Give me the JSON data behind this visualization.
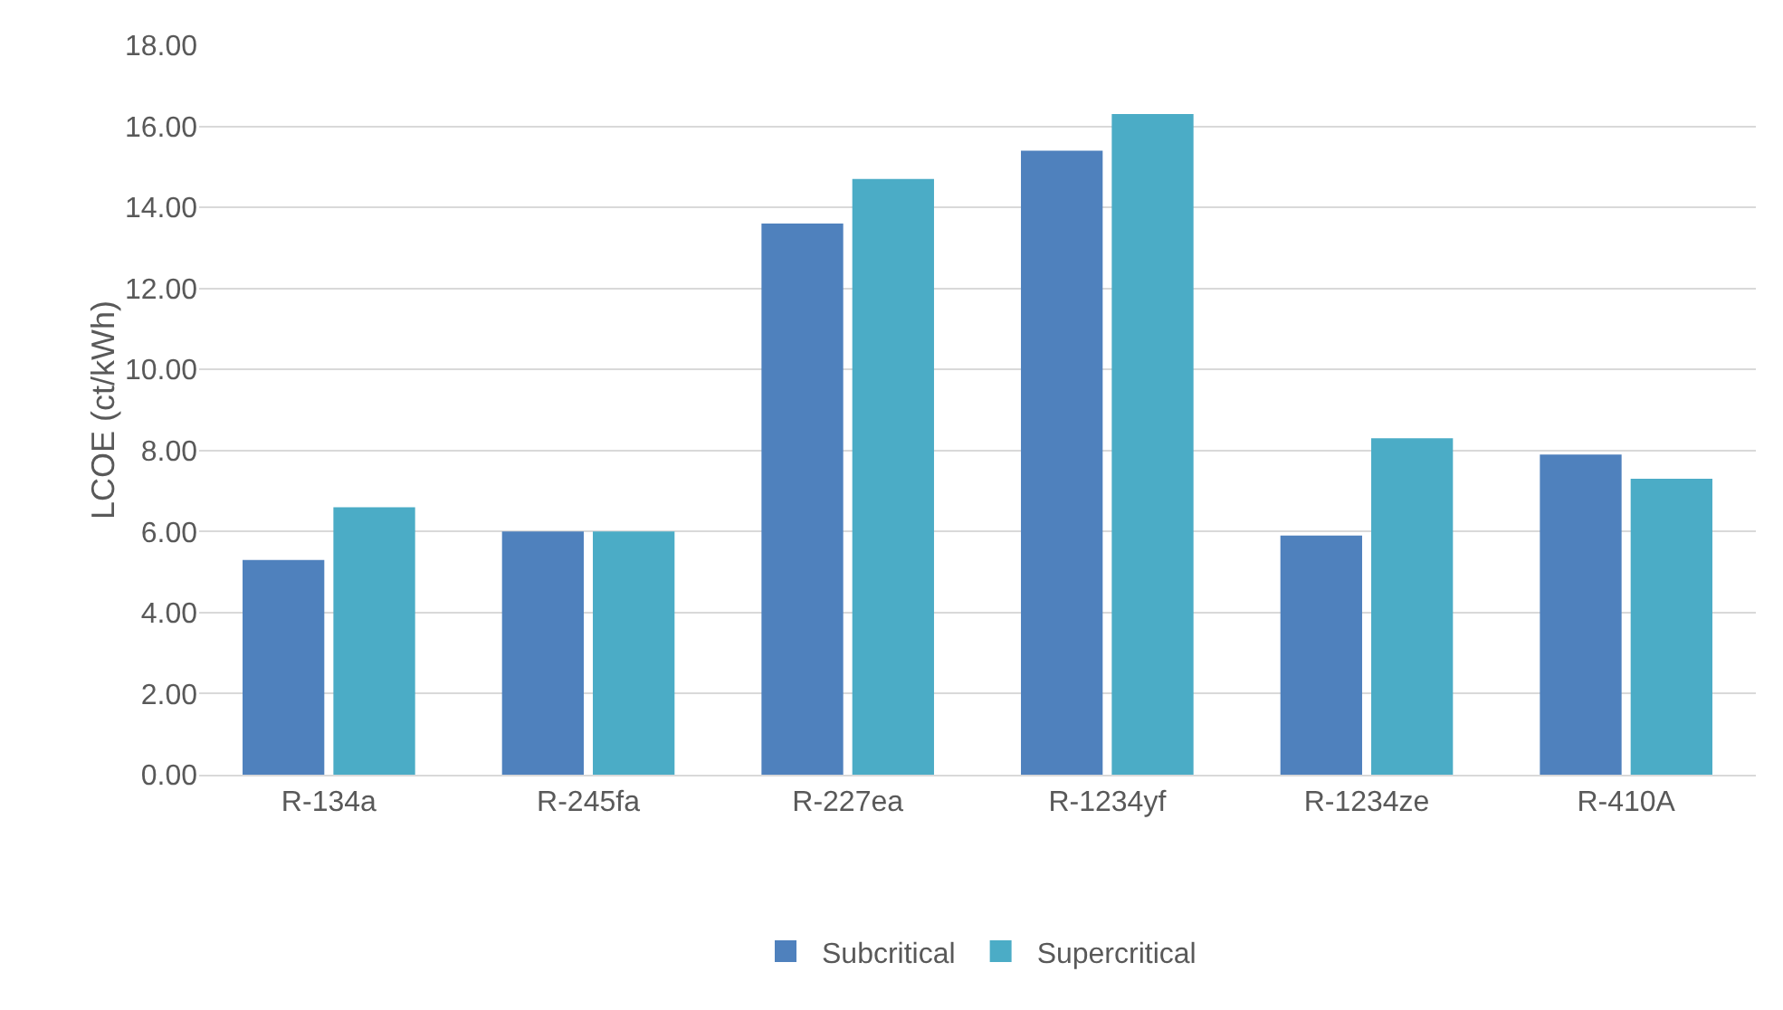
{
  "chart_data": {
    "type": "bar",
    "ylabel": "LCOE (ct/kWh)",
    "categories": [
      "R-134a",
      "R-245fa",
      "R-227ea",
      "R-1234yf",
      "R-1234ze",
      "R-410A"
    ],
    "series": [
      {
        "name": "Subcritical",
        "color": "#4f81bd",
        "values": [
          5.3,
          6.0,
          13.6,
          15.4,
          5.9,
          7.9
        ]
      },
      {
        "name": "Supercritical",
        "color": "#4bacc6",
        "values": [
          6.6,
          6.0,
          14.7,
          16.3,
          8.3,
          7.3
        ]
      }
    ],
    "ylim": [
      0,
      18
    ],
    "yticks": [
      {
        "value": 0,
        "label": "0.00"
      },
      {
        "value": 2,
        "label": "2.00"
      },
      {
        "value": 4,
        "label": "4.00"
      },
      {
        "value": 6,
        "label": "6.00"
      },
      {
        "value": 8,
        "label": "8.00"
      },
      {
        "value": 10,
        "label": "10.00"
      },
      {
        "value": 12,
        "label": "12.00"
      },
      {
        "value": 14,
        "label": "14.00"
      },
      {
        "value": 16,
        "label": "16.00"
      },
      {
        "value": 18,
        "label": "18.00"
      }
    ],
    "grid": "y",
    "legend": "bottom"
  }
}
